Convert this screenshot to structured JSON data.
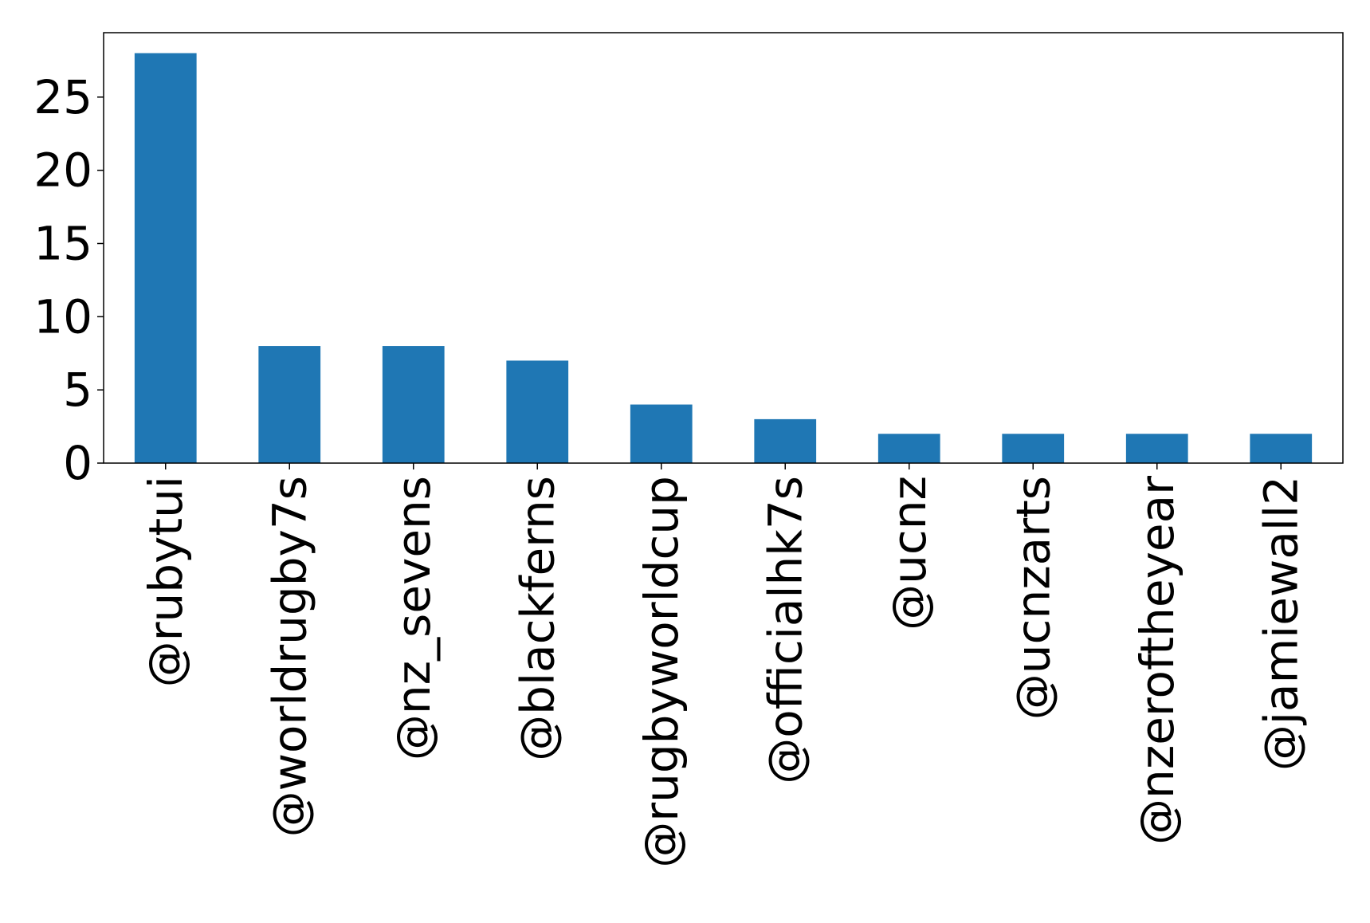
{
  "chart_data": {
    "type": "bar",
    "categories": [
      "@rubytui",
      "@worldrugby7s",
      "@nz_sevens",
      "@blackferns",
      "@rugbyworldcup",
      "@officialhk7s",
      "@ucnz",
      "@ucnzarts",
      "@nzeroftheyear",
      "@jamiewall2"
    ],
    "values": [
      28,
      8,
      8,
      7,
      4,
      3,
      2,
      2,
      2,
      2
    ],
    "title": "",
    "xlabel": "",
    "ylabel": "",
    "ylim": [
      0,
      29.4
    ],
    "yticks": [
      "0",
      "5",
      "10",
      "15",
      "20",
      "25"
    ],
    "grid": false,
    "bar_color": "#1f77b4"
  }
}
